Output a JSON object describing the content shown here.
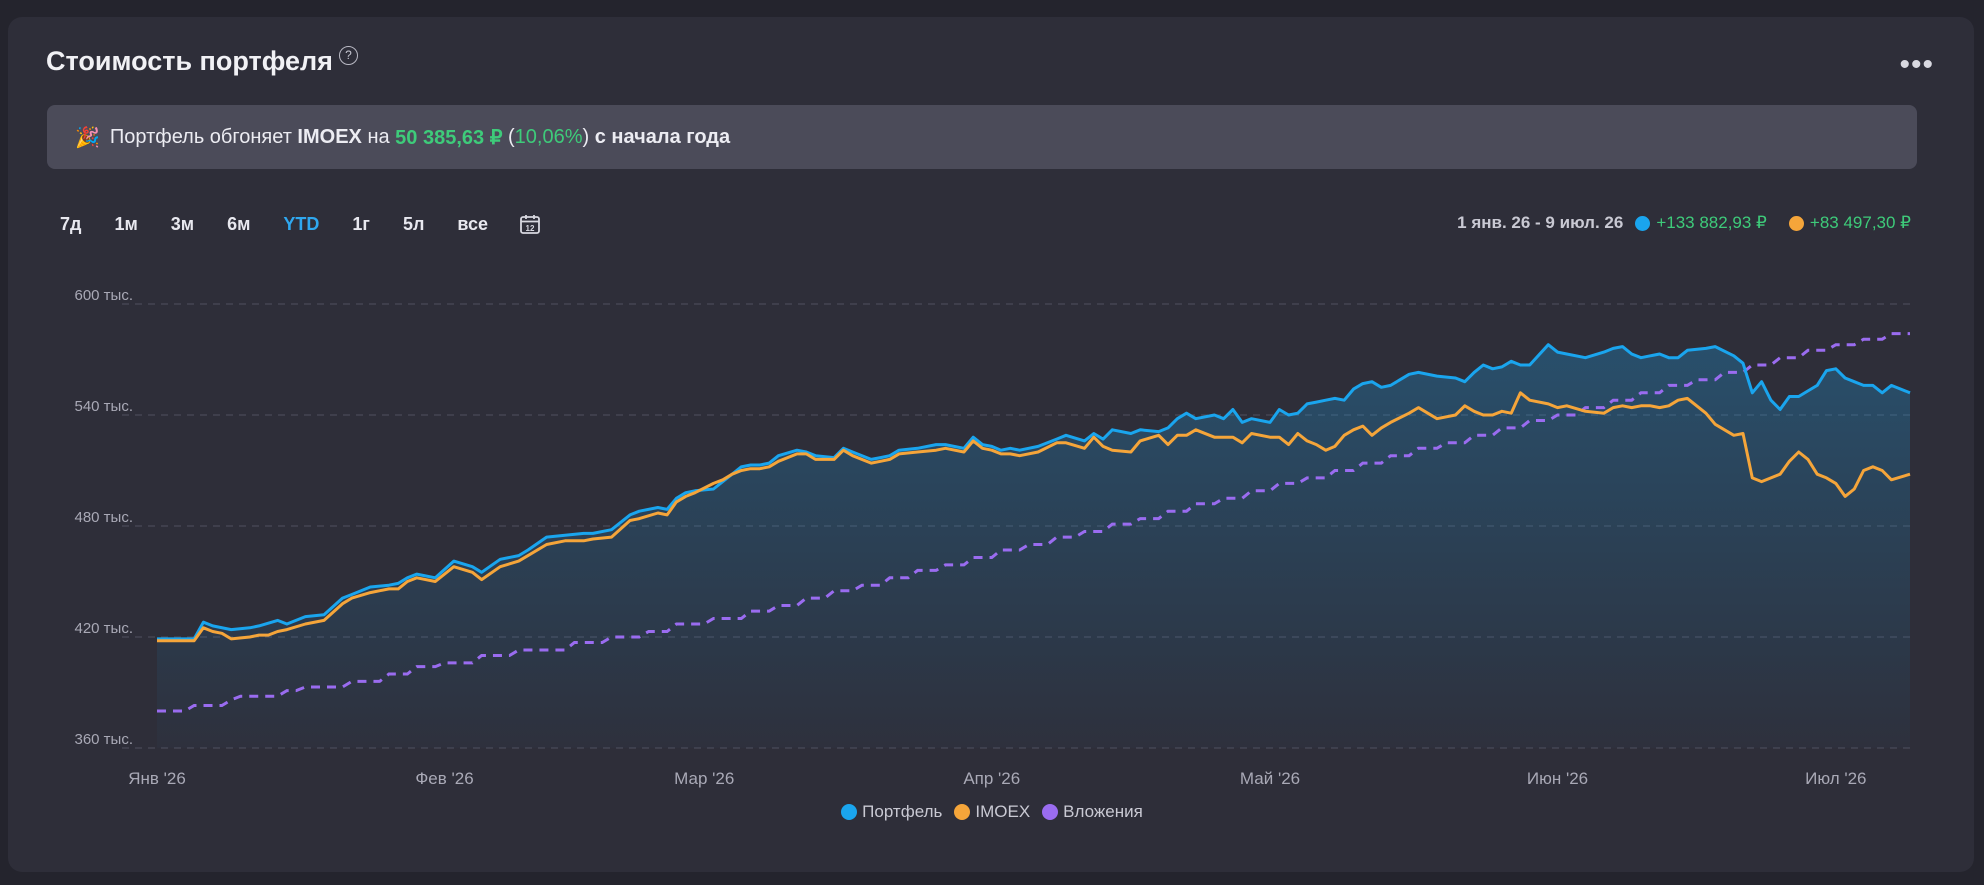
{
  "header": {
    "title": "Стоимость портфеля",
    "help_symbol": "?",
    "more_symbol": "•••"
  },
  "banner": {
    "icon": "party-popper-icon",
    "emoji": "🎉",
    "prefix": "Портфель обгоняет",
    "index": "IMOEX",
    "on": "на",
    "amount": "50 385,63 ₽",
    "percent_open": "(",
    "percent": "10,06%",
    "percent_close": ")",
    "suffix": "с начала года"
  },
  "periods": [
    "7д",
    "1м",
    "3м",
    "6м",
    "YTD",
    "1г",
    "5л",
    "все"
  ],
  "active_period": "YTD",
  "calendar_day": "12",
  "range": {
    "dates": "1 янв. 26 - 9 июл. 26",
    "portfolio_change": "+133 882,93 ₽",
    "index_change": "+83 497,30 ₽"
  },
  "colors": {
    "portfolio": "#1aa5ee",
    "imoex": "#f5a53a",
    "contributions": "#9a6cf0",
    "positive": "#3ecb7a",
    "accent": "#2fa8f0"
  },
  "chart_data": {
    "type": "line",
    "y_ticks": [
      "360 тыс.",
      "420 тыс.",
      "480 тыс.",
      "540 тыс.",
      "600 тыс."
    ],
    "y_tick_values": [
      360,
      420,
      480,
      540,
      600
    ],
    "ylim": [
      360,
      600
    ],
    "y_unit": "тыс.",
    "x_ticks": [
      "Янв '26",
      "Фев '26",
      "Мар '26",
      "Апр '26",
      "Май '26",
      "Июн '26",
      "Июл '26"
    ],
    "x_tick_days": [
      0,
      31,
      59,
      90,
      120,
      151,
      181
    ],
    "x_range_days": [
      0,
      189
    ],
    "grid": true,
    "legend_position": "bottom",
    "series": [
      {
        "name": "Портфель",
        "x": [
          0,
          3,
          4,
          5,
          6,
          8,
          10,
          11,
          13,
          14,
          16,
          18,
          20,
          21,
          23,
          25,
          26,
          27,
          28,
          30,
          32,
          34,
          35,
          37,
          39,
          40,
          42,
          44,
          46,
          47,
          49,
          51,
          52,
          54,
          55,
          56,
          57,
          58,
          60,
          61,
          62,
          63,
          64,
          65,
          66,
          67,
          69,
          70,
          71,
          73,
          74,
          75,
          77,
          78,
          79,
          80,
          82,
          84,
          85,
          87,
          88,
          89,
          90,
          91,
          92,
          93,
          95,
          97,
          98,
          100,
          101,
          102,
          103,
          105,
          106,
          108,
          109,
          110,
          111,
          112,
          114,
          115,
          116,
          117,
          118,
          120,
          121,
          122,
          123,
          124,
          125,
          126,
          127,
          128,
          129,
          130,
          131,
          132,
          133,
          135,
          136,
          138,
          140,
          141,
          142,
          143,
          144,
          145,
          146,
          147,
          148,
          150,
          151,
          152,
          154,
          156,
          157,
          158,
          159,
          160,
          161,
          162,
          163,
          164,
          165,
          167,
          168,
          170,
          171,
          172,
          173,
          174,
          175,
          176,
          177,
          178,
          179,
          180,
          181,
          182,
          183,
          184,
          185,
          186,
          187,
          189
        ],
        "y": [
          419,
          419,
          419,
          428,
          426,
          424,
          425,
          426,
          429,
          427,
          431,
          432,
          441,
          443,
          447,
          448,
          449,
          452,
          454,
          452,
          461,
          458,
          455,
          462,
          464,
          467,
          474,
          475,
          476,
          476,
          478,
          486,
          488,
          490,
          489,
          495,
          498,
          499,
          500,
          504,
          508,
          512,
          513,
          513,
          514,
          518,
          521,
          520,
          518,
          517,
          522,
          520,
          516,
          517,
          518,
          521,
          522,
          524,
          524,
          522,
          528,
          524,
          523,
          521,
          522,
          521,
          523,
          527,
          529,
          526,
          530,
          527,
          532,
          530,
          532,
          531,
          533,
          538,
          541,
          538,
          540,
          538,
          543,
          536,
          538,
          536,
          543,
          540,
          541,
          546,
          547,
          548,
          549,
          548,
          554,
          557,
          558,
          555,
          556,
          562,
          563,
          561,
          560,
          558,
          563,
          567,
          565,
          566,
          569,
          567,
          567,
          578,
          574,
          573,
          571,
          574,
          576,
          577,
          573,
          571,
          572,
          573,
          571,
          571,
          575,
          576,
          577,
          572,
          568,
          552,
          558,
          548,
          543,
          550,
          550,
          553,
          556,
          564,
          565,
          560,
          558,
          556,
          556,
          552,
          556,
          552
        ],
        "values_source": "estimated from gridlines"
      },
      {
        "name": "IMOEX",
        "x": [
          0,
          3,
          4,
          5,
          6,
          7,
          8,
          10,
          11,
          12,
          13,
          14,
          16,
          18,
          20,
          21,
          23,
          25,
          26,
          27,
          28,
          30,
          32,
          34,
          35,
          37,
          39,
          40,
          42,
          44,
          46,
          47,
          49,
          51,
          52,
          54,
          55,
          56,
          57,
          58,
          60,
          61,
          62,
          63,
          64,
          65,
          66,
          67,
          69,
          70,
          71,
          73,
          74,
          75,
          77,
          78,
          79,
          80,
          82,
          84,
          85,
          87,
          88,
          89,
          90,
          91,
          92,
          93,
          95,
          97,
          98,
          100,
          101,
          102,
          103,
          105,
          106,
          108,
          109,
          110,
          111,
          112,
          114,
          115,
          116,
          117,
          118,
          120,
          121,
          122,
          123,
          124,
          125,
          126,
          127,
          128,
          129,
          130,
          131,
          132,
          133,
          135,
          136,
          138,
          140,
          141,
          142,
          143,
          144,
          145,
          146,
          147,
          148,
          150,
          151,
          152,
          154,
          156,
          157,
          158,
          159,
          160,
          161,
          162,
          163,
          164,
          165,
          167,
          168,
          170,
          171,
          172,
          173,
          174,
          175,
          176,
          177,
          178,
          179,
          180,
          181,
          182,
          183,
          184,
          185,
          186,
          187,
          189
        ],
        "y": [
          418,
          418,
          418,
          425,
          423,
          422,
          419,
          420,
          421,
          421,
          423,
          424,
          427,
          429,
          438,
          441,
          444,
          446,
          446,
          450,
          452,
          450,
          458,
          455,
          451,
          458,
          461,
          464,
          470,
          472,
          472,
          473,
          474,
          483,
          484,
          487,
          486,
          493,
          496,
          498,
          503,
          505,
          508,
          510,
          511,
          511,
          512,
          515,
          519,
          519,
          516,
          516,
          521,
          518,
          514,
          515,
          516,
          519,
          520,
          521,
          522,
          520,
          526,
          522,
          521,
          519,
          519,
          518,
          520,
          525,
          525,
          522,
          528,
          523,
          521,
          520,
          526,
          529,
          524,
          529,
          529,
          532,
          528,
          528,
          528,
          525,
          530,
          528,
          528,
          524,
          530,
          526,
          524,
          521,
          523,
          529,
          532,
          534,
          529,
          533,
          536,
          541,
          544,
          538,
          540,
          545,
          542,
          540,
          540,
          542,
          541,
          552,
          548,
          546,
          544,
          545,
          542,
          541,
          544,
          545,
          544,
          545,
          545,
          544,
          545,
          548,
          549,
          541,
          535,
          529,
          530,
          506,
          504,
          506,
          508,
          515,
          520,
          516,
          508,
          506,
          503,
          496,
          500,
          510,
          512,
          510,
          505,
          508
        ],
        "values_source": "estimated from gridlines"
      },
      {
        "name": "Вложения",
        "style": "dashed-step",
        "x": [
          0,
          3,
          4,
          7,
          8,
          9,
          10,
          13,
          14,
          15,
          16,
          18,
          20,
          21,
          24,
          25,
          27,
          28,
          30,
          31,
          34,
          35,
          38,
          39,
          40,
          42,
          44,
          45,
          48,
          49,
          52,
          53,
          55,
          56,
          59,
          60,
          63,
          64,
          66,
          67,
          69,
          70,
          72,
          73,
          75,
          76,
          78,
          79,
          81,
          82,
          84,
          85,
          87,
          88,
          90,
          91,
          93,
          94,
          96,
          97,
          99,
          100,
          102,
          103,
          105,
          106,
          108,
          109,
          111,
          112,
          114,
          115,
          117,
          118,
          120,
          121,
          123,
          124,
          126,
          127,
          129,
          130,
          132,
          133,
          135,
          136,
          138,
          139,
          141,
          142,
          144,
          145,
          147,
          148,
          150,
          151,
          153,
          154,
          156,
          157,
          159,
          160,
          162,
          163,
          165,
          166,
          168,
          169,
          171,
          172,
          174,
          175,
          177,
          178,
          180,
          181,
          183,
          184,
          186,
          187,
          189
        ],
        "y": [
          380,
          380,
          383,
          383,
          386,
          388,
          388,
          388,
          391,
          391,
          393,
          393,
          393,
          396,
          396,
          400,
          400,
          404,
          404,
          406,
          406,
          410,
          410,
          413,
          413,
          413,
          413,
          417,
          417,
          420,
          420,
          423,
          423,
          427,
          427,
          430,
          430,
          434,
          434,
          437,
          437,
          441,
          441,
          445,
          445,
          448,
          448,
          452,
          452,
          456,
          456,
          459,
          459,
          463,
          463,
          467,
          467,
          470,
          470,
          474,
          474,
          477,
          477,
          481,
          481,
          484,
          484,
          488,
          488,
          492,
          492,
          495,
          495,
          499,
          499,
          503,
          503,
          506,
          506,
          510,
          510,
          514,
          514,
          518,
          518,
          522,
          522,
          525,
          525,
          529,
          529,
          533,
          533,
          537,
          537,
          540,
          540,
          544,
          544,
          548,
          548,
          552,
          552,
          556,
          556,
          559,
          559,
          563,
          563,
          567,
          567,
          571,
          571,
          575,
          575,
          578,
          578,
          581,
          581,
          584,
          584
        ],
        "values_source": "estimated from gridlines"
      }
    ]
  },
  "legend": [
    {
      "label": "Портфель",
      "color": "#1aa5ee"
    },
    {
      "label": "IMOEX",
      "color": "#f5a53a"
    },
    {
      "label": "Вложения",
      "color": "#9a6cf0"
    }
  ]
}
